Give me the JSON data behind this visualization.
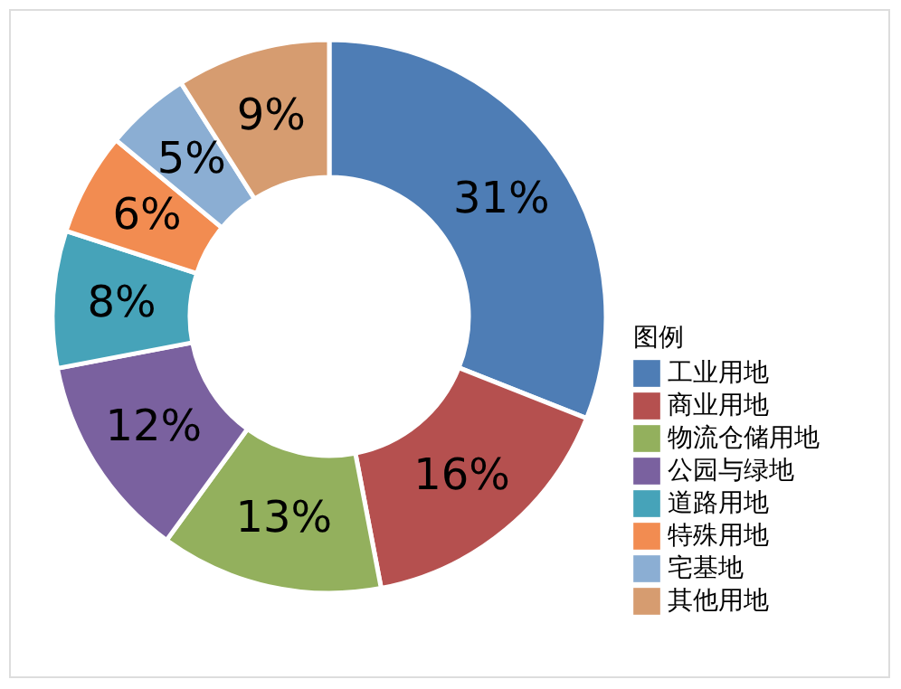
{
  "chart_data": {
    "type": "donut",
    "legend_title": "图例",
    "legend": "right",
    "categories": [
      "工业用地",
      "商业用地",
      "物流仓储用地",
      "公园与绿地",
      "道路用地",
      "特殊用地",
      "宅基地",
      "其他用地"
    ],
    "values": [
      31,
      16,
      13,
      12,
      8,
      6,
      5,
      9
    ],
    "colors": [
      "#4e7db5",
      "#b5504f",
      "#93b05d",
      "#7a619f",
      "#46a3b9",
      "#f28c51",
      "#8baed3",
      "#d69c70"
    ],
    "value_labels": [
      "31%",
      "16%",
      "13%",
      "12%",
      "8%",
      "6%",
      "5%",
      "9%"
    ]
  }
}
